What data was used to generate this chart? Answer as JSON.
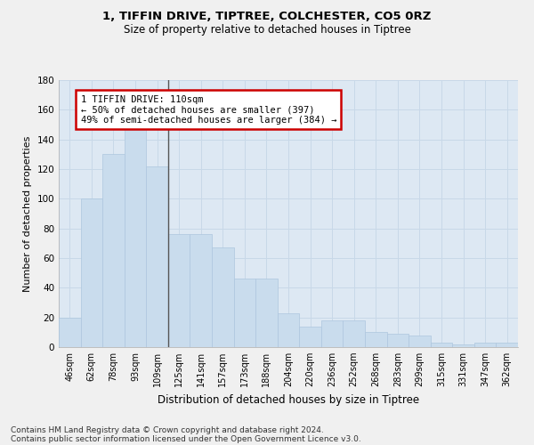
{
  "title": "1, TIFFIN DRIVE, TIPTREE, COLCHESTER, CO5 0RZ",
  "subtitle": "Size of property relative to detached houses in Tiptree",
  "xlabel": "Distribution of detached houses by size in Tiptree",
  "ylabel": "Number of detached properties",
  "categories": [
    "46sqm",
    "62sqm",
    "78sqm",
    "93sqm",
    "109sqm",
    "125sqm",
    "141sqm",
    "157sqm",
    "173sqm",
    "188sqm",
    "204sqm",
    "220sqm",
    "236sqm",
    "252sqm",
    "268sqm",
    "283sqm",
    "299sqm",
    "315sqm",
    "331sqm",
    "347sqm",
    "362sqm"
  ],
  "values": [
    20,
    100,
    130,
    147,
    122,
    76,
    76,
    67,
    46,
    46,
    23,
    14,
    18,
    18,
    10,
    9,
    8,
    3,
    2,
    3,
    3
  ],
  "bar_color": "#c9dced",
  "bar_edge_color": "#aec6de",
  "highlight_index": 4,
  "highlight_line_color": "#555555",
  "annotation_text": "1 TIFFIN DRIVE: 110sqm\n← 50% of detached houses are smaller (397)\n49% of semi-detached houses are larger (384) →",
  "annotation_box_color": "#ffffff",
  "annotation_box_edge_color": "#cc0000",
  "ylim": [
    0,
    180
  ],
  "yticks": [
    0,
    20,
    40,
    60,
    80,
    100,
    120,
    140,
    160,
    180
  ],
  "grid_color": "#c8d8e8",
  "background_color": "#dde8f3",
  "footer_line1": "Contains HM Land Registry data © Crown copyright and database right 2024.",
  "footer_line2": "Contains public sector information licensed under the Open Government Licence v3.0."
}
